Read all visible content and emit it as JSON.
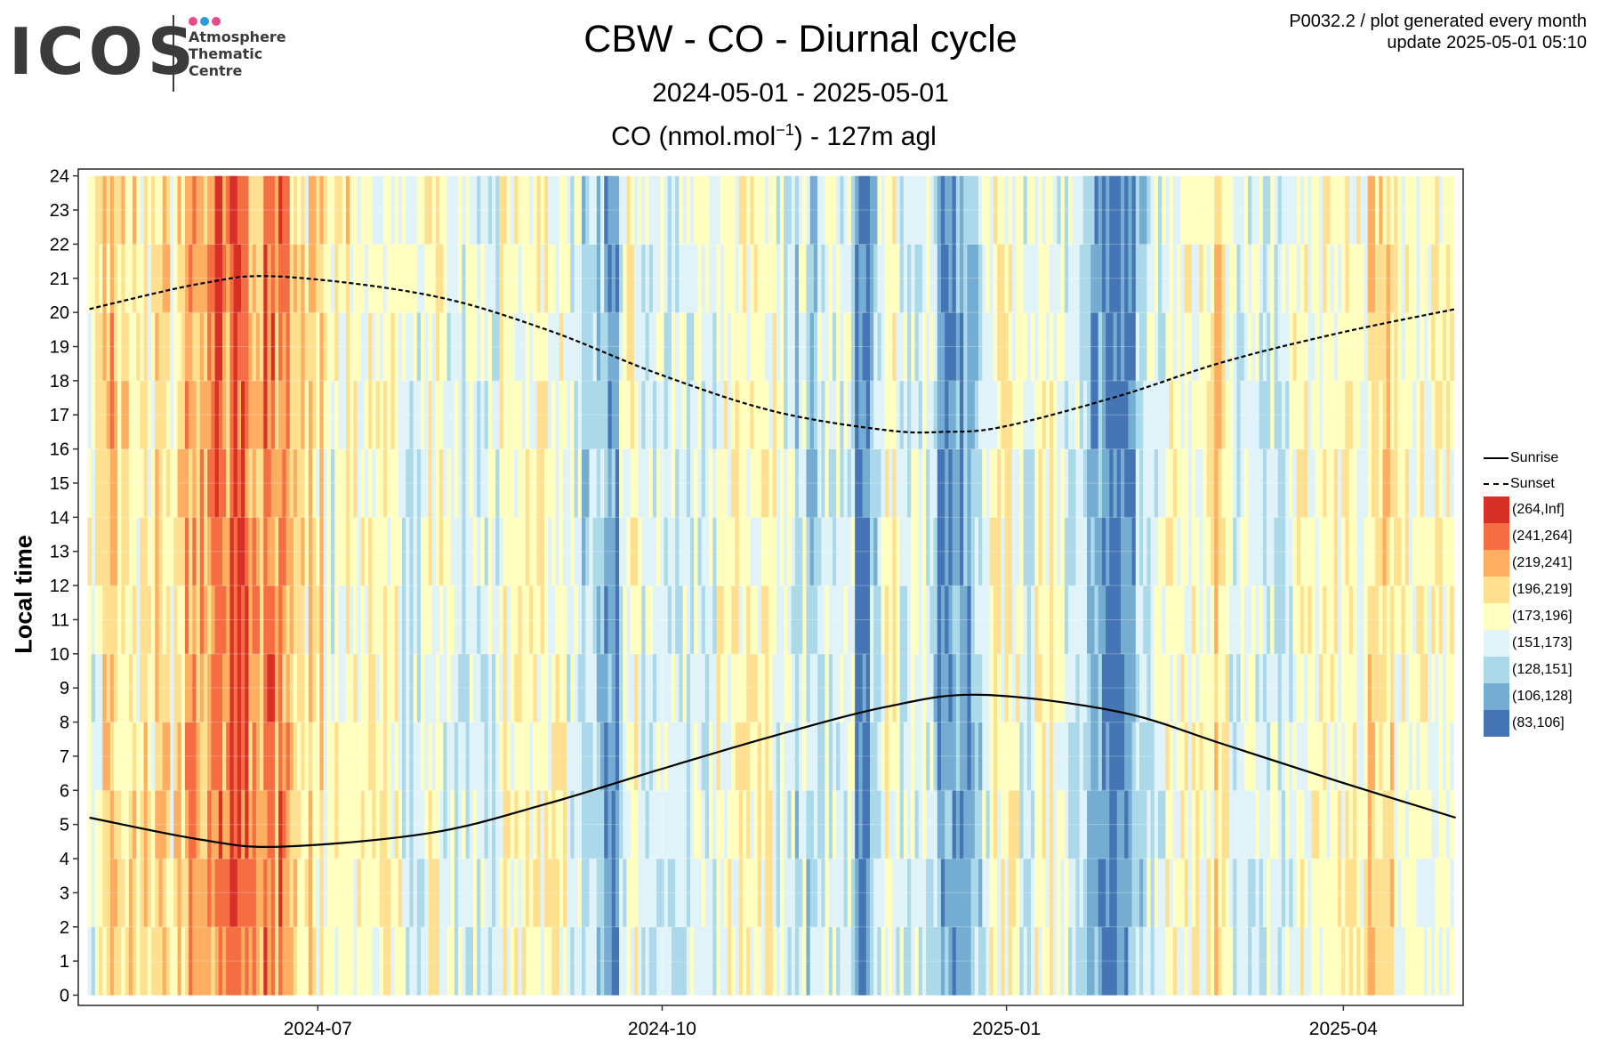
{
  "logo": {
    "name": "ICOS",
    "sub_lines": [
      "Atmosphere",
      "Thematic",
      "Centre"
    ],
    "dot_colors": [
      "#e84b8a",
      "#2b9be0",
      "#e84b8a"
    ]
  },
  "header": {
    "title": "CBW - CO - Diurnal cycle",
    "subtitle": "2024-05-01 - 2025-05-01",
    "variable_prefix": "CO (nmol.mol",
    "variable_sup": "−1",
    "variable_suffix": ") - 127m agl",
    "meta_line1": "P0032.2 / plot generated every month",
    "meta_line2": "update  2025-05-01 05:10"
  },
  "legend": {
    "sunrise_label": "Sunrise",
    "sunset_label": "Sunset"
  },
  "chart_data": {
    "type": "heatmap",
    "title": "CBW - CO - Diurnal cycle",
    "subtitle": "2024-05-01 - 2025-05-01",
    "xlabel": "",
    "ylabel": "Local time",
    "x_start": "2024-05-01",
    "x_end": "2025-05-01",
    "xlim": [
      "2024-04-28",
      "2025-05-03"
    ],
    "x_ticks": [
      "2024-07-01",
      "2024-10-01",
      "2025-01-01",
      "2025-04-01"
    ],
    "x_tick_labels": [
      "2024-07",
      "2024-10",
      "2025-01",
      "2025-04"
    ],
    "ylim": [
      -0.3,
      24.2
    ],
    "y_ticks": [
      0,
      1,
      2,
      3,
      4,
      5,
      6,
      7,
      8,
      9,
      10,
      11,
      12,
      13,
      14,
      15,
      16,
      17,
      18,
      19,
      20,
      21,
      22,
      23,
      24
    ],
    "grid": true,
    "legend_position": "right",
    "bins": [
      {
        "label": "(264,Inf]",
        "color": "#d73027"
      },
      {
        "label": "(241,264]",
        "color": "#f46d43"
      },
      {
        "label": "(219,241]",
        "color": "#fdae61"
      },
      {
        "label": "(196,219]",
        "color": "#fee090"
      },
      {
        "label": "(173,196]",
        "color": "#ffffbf"
      },
      {
        "label": "(151,173]",
        "color": "#e0f3f8"
      },
      {
        "label": "(128,151]",
        "color": "#abd9e9"
      },
      {
        "label": "(106,128]",
        "color": "#74add1"
      },
      {
        "label": "(83,106]",
        "color": "#4575b4"
      }
    ],
    "cell_hours": 2,
    "daily_mean_class": [
      4,
      3,
      4,
      4,
      5,
      5,
      6,
      5,
      5,
      5,
      5,
      5,
      5,
      4,
      4,
      5,
      4,
      4,
      5,
      5,
      5,
      5,
      4,
      5,
      5,
      5,
      6,
      6,
      6,
      6,
      6,
      6,
      6,
      6,
      7,
      8,
      6,
      6,
      7,
      7,
      7,
      7,
      7,
      6,
      6,
      6,
      5,
      7,
      7,
      7,
      6,
      7,
      6,
      6,
      5,
      5,
      5,
      5,
      4,
      6,
      5,
      4,
      5,
      4,
      4,
      3,
      4,
      4,
      4,
      5,
      4,
      4,
      4,
      4,
      4,
      4,
      4,
      4,
      4,
      4,
      4,
      4,
      4,
      4,
      3,
      3,
      3,
      3,
      3,
      3,
      4,
      4,
      4,
      4,
      4,
      3,
      3,
      3,
      3,
      3,
      3,
      3,
      3,
      3,
      3,
      3,
      3,
      3,
      3,
      3,
      4,
      4,
      4,
      4,
      4,
      4,
      4,
      4,
      4,
      4,
      4,
      4,
      4,
      4,
      4,
      4,
      4,
      4,
      3,
      3,
      3,
      3,
      2,
      2,
      2,
      2,
      2,
      2,
      1,
      1,
      1,
      1,
      3,
      3,
      4,
      4,
      4,
      3,
      3,
      3,
      3,
      3,
      3,
      3,
      3,
      3,
      3,
      3,
      3,
      3,
      3,
      3,
      3,
      3,
      3,
      3,
      3,
      3,
      4,
      4,
      4,
      4,
      4,
      4,
      4,
      4,
      4,
      4,
      4,
      4,
      4,
      4,
      4,
      4,
      3,
      3,
      3,
      3,
      3,
      2,
      3,
      3,
      2,
      2,
      2,
      3,
      3,
      3,
      3,
      3,
      3,
      3,
      3,
      3,
      3,
      0,
      0,
      0,
      0,
      2,
      2,
      3,
      3,
      4,
      4,
      4,
      3,
      3,
      3,
      3,
      3,
      3,
      3,
      3,
      3,
      3,
      2,
      1,
      1,
      1,
      1,
      1,
      1,
      1,
      1,
      1,
      2,
      2,
      2,
      3,
      3,
      4,
      4,
      4,
      4,
      4,
      4,
      4,
      4,
      3,
      3,
      3,
      3,
      4,
      4,
      4,
      4,
      4,
      3,
      3,
      3,
      3,
      3,
      3,
      3,
      3,
      3,
      2,
      1,
      1,
      1,
      0,
      0,
      0,
      0,
      0,
      0,
      0,
      1,
      1,
      2,
      2,
      2,
      3,
      3,
      3,
      3,
      3,
      4,
      4,
      4,
      4,
      4,
      4,
      4,
      4,
      4,
      4,
      4,
      4,
      4,
      5,
      5,
      4,
      4,
      3,
      3,
      3,
      3,
      3,
      3,
      3,
      3,
      3,
      3,
      3,
      3,
      3,
      3,
      3,
      3,
      3,
      4,
      4,
      4,
      4,
      4,
      4,
      4,
      4,
      4,
      4,
      4,
      4,
      4,
      4,
      4,
      4,
      4,
      4,
      4,
      4,
      5,
      5,
      5,
      5,
      5,
      5,
      5
    ],
    "daily_spread": 1,
    "sunrise": {
      "name": "Sunrise",
      "dates": [
        "2024-05-01",
        "2024-05-31",
        "2024-06-21",
        "2024-07-31",
        "2024-08-31",
        "2024-09-30",
        "2024-10-31",
        "2024-11-30",
        "2024-12-25",
        "2025-01-31",
        "2025-02-28",
        "2025-03-31",
        "2025-05-01"
      ],
      "hours": [
        5.2,
        4.55,
        4.35,
        4.75,
        5.6,
        6.6,
        7.6,
        8.45,
        8.8,
        8.3,
        7.35,
        6.25,
        5.2
      ]
    },
    "sunset": {
      "name": "Sunset",
      "dates": [
        "2024-05-01",
        "2024-05-31",
        "2024-06-21",
        "2024-07-31",
        "2024-08-31",
        "2024-09-30",
        "2024-10-31",
        "2024-11-30",
        "2024-12-15",
        "2024-12-31",
        "2025-01-31",
        "2025-02-28",
        "2025-03-31",
        "2025-05-01"
      ],
      "hours": [
        20.1,
        20.85,
        21.05,
        20.5,
        19.5,
        18.2,
        17.1,
        16.55,
        16.5,
        16.65,
        17.55,
        18.55,
        19.4,
        20.1
      ]
    }
  }
}
